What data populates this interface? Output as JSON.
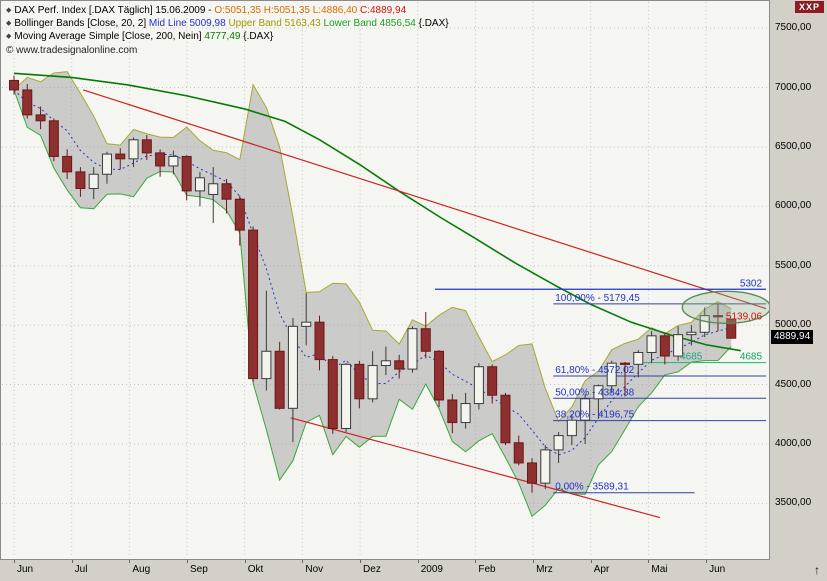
{
  "window": {
    "badge": "XXP",
    "scroll_up": "↑"
  },
  "legend": {
    "lines": [
      {
        "marker": "◆",
        "segments": [
          {
            "text": "DAX Perf. Index [.DAX  Täglich]  15.06.2009 - ",
            "color": "#000000"
          },
          {
            "text": "O:5051,35 ",
            "color": "#d96b00"
          },
          {
            "text": "H:5051,35 ",
            "color": "#d96b00"
          },
          {
            "text": "L:4886,40 ",
            "color": "#d96b00"
          },
          {
            "text": "C:4889,94",
            "color": "#d81111"
          }
        ]
      },
      {
        "marker": "◆",
        "segments": [
          {
            "text": "Bollinger Bands [Close, 20, 2] ",
            "color": "#000000"
          },
          {
            "text": "Mid Line 5009,98 ",
            "color": "#2233cc"
          },
          {
            "text": "Upper Band 5163,43 ",
            "color": "#9c9c00"
          },
          {
            "text": "Lower Band 4856,54 ",
            "color": "#1e9e1e"
          },
          {
            "text": "{.DAX}",
            "color": "#000000"
          }
        ]
      },
      {
        "marker": "◆",
        "segments": [
          {
            "text": "Moving Average Simple [Close, 200, Nein]  ",
            "color": "#000000"
          },
          {
            "text": "4777,49 ",
            "color": "#067a06"
          },
          {
            "text": "{.DAX}",
            "color": "#000000"
          }
        ]
      }
    ],
    "copyright": "© www.tradesignalonline.com"
  },
  "axis": {
    "y_ticks": [
      {
        "value": 7500,
        "label": "7500,00"
      },
      {
        "value": 7000,
        "label": "7000,00"
      },
      {
        "value": 6500,
        "label": "6500,00"
      },
      {
        "value": 6000,
        "label": "6000,00"
      },
      {
        "value": 5500,
        "label": "5500,00"
      },
      {
        "value": 5000,
        "label": "5000,00"
      },
      {
        "value": 4500,
        "label": "4500,00"
      },
      {
        "value": 4000,
        "label": "4000,00"
      },
      {
        "value": 3500,
        "label": "3500,00"
      }
    ],
    "x_labels": [
      "Jun",
      "Jul",
      "Aug",
      "Sep",
      "Okt",
      "Nov",
      "Dez",
      "2009",
      "Feb",
      "Mrz",
      "Apr",
      "Mai",
      "Jun"
    ],
    "last_price": {
      "label": "4889,94",
      "value": 4889.94,
      "bg": "#000000",
      "fg": "#ffffff"
    }
  },
  "chart_data": {
    "type": "candlestick",
    "title": "DAX Perf. Index [.DAX Täglich]",
    "date_shown": "15.06.2009",
    "last_ohlc": {
      "o": 5051.35,
      "h": 5051.35,
      "l": 4886.4,
      "c": 4889.94
    },
    "ylim": [
      3040,
      7720
    ],
    "months_span": 12.9,
    "candle_month_step": 0.2303,
    "candles_style": {
      "up_fill": "#f4f4ee",
      "up_stroke": "#3a3a3a",
      "down_fill": "#8f3030",
      "down_stroke": "#6b1818"
    },
    "candles": [
      [
        7060,
        7100,
        6940,
        6980
      ],
      [
        6980,
        7030,
        6740,
        6770
      ],
      [
        6770,
        6840,
        6650,
        6720
      ],
      [
        6720,
        6740,
        6380,
        6420
      ],
      [
        6420,
        6480,
        6230,
        6290
      ],
      [
        6290,
        6330,
        6080,
        6150
      ],
      [
        6150,
        6330,
        6060,
        6270
      ],
      [
        6270,
        6460,
        6190,
        6440
      ],
      [
        6440,
        6490,
        6310,
        6400
      ],
      [
        6400,
        6580,
        6330,
        6560
      ],
      [
        6560,
        6600,
        6390,
        6450
      ],
      [
        6450,
        6480,
        6250,
        6340
      ],
      [
        6340,
        6470,
        6270,
        6420
      ],
      [
        6420,
        6430,
        6050,
        6130
      ],
      [
        6130,
        6290,
        6000,
        6240
      ],
      [
        6100,
        6330,
        5860,
        6190
      ],
      [
        6190,
        6230,
        5940,
        6060
      ],
      [
        6060,
        6090,
        5670,
        5800
      ],
      [
        5800,
        5830,
        4520,
        4550
      ],
      [
        4550,
        5290,
        4450,
        4780
      ],
      [
        4780,
        4860,
        4290,
        4300
      ],
      [
        4300,
        5060,
        4015,
        4990
      ],
      [
        4990,
        5270,
        4830,
        5025
      ],
      [
        5025,
        5080,
        4620,
        4710
      ],
      [
        4710,
        4740,
        4085,
        4130
      ],
      [
        4130,
        4680,
        4100,
        4670
      ],
      [
        4670,
        4700,
        4300,
        4380
      ],
      [
        4380,
        4780,
        4350,
        4660
      ],
      [
        4660,
        4820,
        4580,
        4700
      ],
      [
        4700,
        4750,
        4550,
        4630
      ],
      [
        4630,
        4990,
        4600,
        4970
      ],
      [
        4970,
        5110,
        4720,
        4780
      ],
      [
        4780,
        4790,
        4310,
        4370
      ],
      [
        4370,
        4420,
        4090,
        4180
      ],
      [
        4180,
        4430,
        4130,
        4340
      ],
      [
        4340,
        4680,
        4290,
        4650
      ],
      [
        4650,
        4670,
        4340,
        4410
      ],
      [
        4410,
        4430,
        3990,
        4010
      ],
      [
        4010,
        4070,
        3820,
        3840
      ],
      [
        3840,
        3880,
        3589,
        3670
      ],
      [
        3670,
        3990,
        3620,
        3950
      ],
      [
        3950,
        4100,
        3840,
        4070
      ],
      [
        4070,
        4250,
        3990,
        4200
      ],
      [
        4200,
        4420,
        4000,
        4380
      ],
      [
        4380,
        4500,
        4220,
        4490
      ],
      [
        4490,
        4700,
        4430,
        4680
      ],
      [
        4680,
        4690,
        4400,
        4670
      ],
      [
        4670,
        4790,
        4560,
        4770
      ],
      [
        4770,
        4950,
        4680,
        4910
      ],
      [
        4910,
        4930,
        4670,
        4740
      ],
      [
        4740,
        4990,
        4700,
        4920
      ],
      [
        4920,
        5000,
        4830,
        4940
      ],
      [
        4940,
        5150,
        4900,
        5080
      ],
      [
        5080,
        5177,
        4950,
        5070
      ],
      [
        5051,
        5051,
        4886,
        4890
      ]
    ],
    "indicators": {
      "bollinger": {
        "window": 5,
        "mult": 2,
        "mid_color": "#2233cc",
        "band_fill": "rgba(145,145,145,0.42)",
        "upper_color": "#a8a832",
        "lower_color": "#3aa83a",
        "current": {
          "mid": 5009.98,
          "upper": 5163.43,
          "lower": 4856.54
        }
      },
      "ma200": {
        "color": "#067a06",
        "current": 4777.49,
        "points": [
          [
            0,
            7120
          ],
          [
            1,
            7085
          ],
          [
            2,
            7020
          ],
          [
            3,
            6930
          ],
          [
            4,
            6820
          ],
          [
            4.7,
            6715
          ],
          [
            5.3,
            6560
          ],
          [
            6,
            6350
          ],
          [
            6.7,
            6120
          ],
          [
            7.4,
            5905
          ],
          [
            8,
            5730
          ],
          [
            8.7,
            5520
          ],
          [
            9.4,
            5330
          ],
          [
            10,
            5175
          ],
          [
            10.7,
            5025
          ],
          [
            11.4,
            4915
          ],
          [
            12,
            4835
          ],
          [
            12.6,
            4785
          ]
        ]
      }
    },
    "drawings": {
      "trendlines": [
        {
          "from": [
            1.2,
            6980
          ],
          "to": [
            13.04,
            5139
          ],
          "color": "#c92525",
          "end_label": "5139,06",
          "end_label_color": "#d81111"
        },
        {
          "from": [
            4.8,
            4220
          ],
          "to": [
            11.2,
            3380
          ],
          "color": "#c92525"
        }
      ],
      "hlines": [
        {
          "value": 5302,
          "from": 7.3,
          "to": 13.04,
          "color": "#2233cc",
          "label": "5302",
          "label_color": "#2233cc"
        },
        {
          "value": 4685,
          "from": 10.9,
          "to": 13.04,
          "color": "#33bb77",
          "label": "4685",
          "label_color": "#11a564",
          "label2": "4685",
          "label2_color": "#2aa07a",
          "label2_month": 11.55
        }
      ],
      "fibonacci": {
        "line_color": "#33419a",
        "label_color": "#2233cc",
        "from": 9.35,
        "to": 13.04,
        "levels": [
          {
            "pct": "100,00%",
            "value": 5179.45,
            "label": "100,00% - 5179,45"
          },
          {
            "pct": "61,80%",
            "value": 4572.02,
            "label": "61,80% - 4572,02"
          },
          {
            "pct": "50,00%",
            "value": 4384.38,
            "label": "50,00% - 4384,38"
          },
          {
            "pct": "38,20%",
            "value": 4196.75,
            "label": "38,20% - 4196,75"
          },
          {
            "pct": "0,00%",
            "value": 3589.31,
            "label": "0,00% - 3589,31",
            "to": 11.8
          }
        ]
      },
      "ellipse": {
        "cx_month": 12.35,
        "cy_value": 5150,
        "rx": 44,
        "ry": 16,
        "stroke": "#5a8a5a",
        "fill": "rgba(150,185,150,0.30)"
      }
    }
  }
}
